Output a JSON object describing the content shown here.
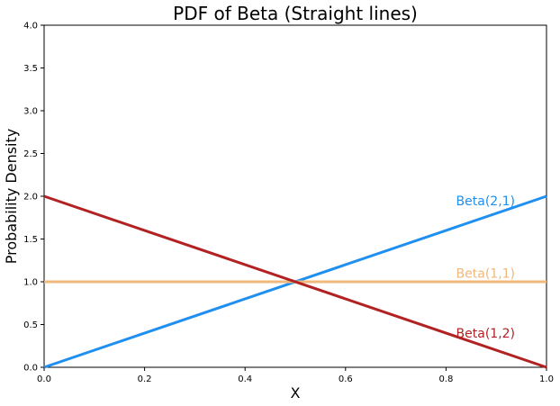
{
  "chart_data": {
    "type": "line",
    "title": "PDF of Beta (Straight lines)",
    "xlabel": "X",
    "ylabel": "Probability Density",
    "xlim": [
      0.0,
      1.0
    ],
    "ylim": [
      0.0,
      4.0
    ],
    "x_ticks": [
      "0.0",
      "0.2",
      "0.4",
      "0.6",
      "0.8",
      "1.0"
    ],
    "y_ticks": [
      "0.0",
      "0.5",
      "1.0",
      "1.5",
      "2.0",
      "2.5",
      "3.0",
      "3.5",
      "4.0"
    ],
    "grid": false,
    "legend": "none",
    "series": [
      {
        "name": "Beta(2,1)",
        "color": "#1f8ff0",
        "x": [
          0.0,
          1.0
        ],
        "y": [
          0.0,
          2.0
        ]
      },
      {
        "name": "Beta(1,1)",
        "color": "#f0b87a",
        "x": [
          0.0,
          1.0
        ],
        "y": [
          1.0,
          1.0
        ]
      },
      {
        "name": "Beta(1,2)",
        "color": "#b22222",
        "x": [
          0.0,
          1.0
        ],
        "y": [
          2.0,
          0.0
        ]
      }
    ],
    "annotations": [
      {
        "text": "Beta(2,1)",
        "x": 0.82,
        "y": 1.95,
        "color": "#1f8ff0"
      },
      {
        "text": "Beta(1,1)",
        "x": 0.82,
        "y": 1.1,
        "color": "#f0b87a"
      },
      {
        "text": "Beta(1,2)",
        "x": 0.82,
        "y": 0.4,
        "color": "#b22222"
      }
    ]
  }
}
